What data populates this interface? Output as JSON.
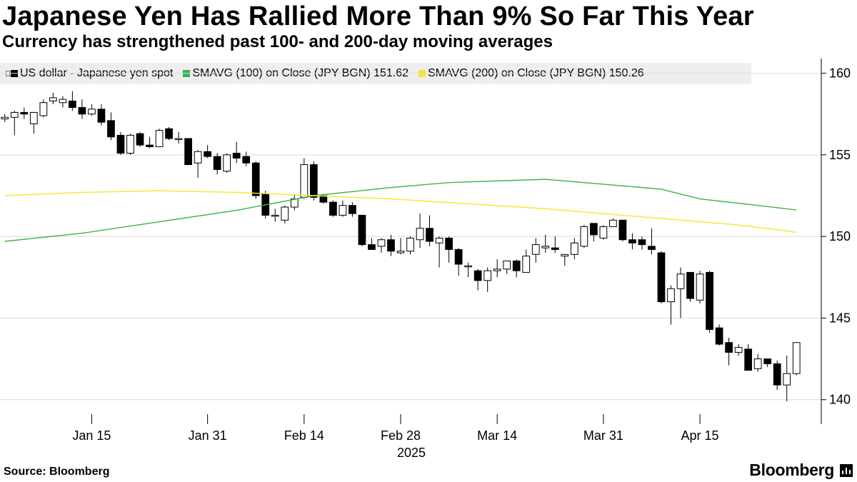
{
  "header": {
    "title": "Japanese Yen Has Rallied More Than 9% So Far This Year",
    "subtitle": "Currency has strengthened past 100- and 200-day moving averages"
  },
  "legend": {
    "spot_label": "US dollar - Japanese yen spot",
    "sma100_label": "SMAVG (100)  on Close (JPY BGN) 151.62",
    "sma200_label": "SMAVG (200)  on Close (JPY BGN) 150.26"
  },
  "footer": {
    "source": "Source: Bloomberg",
    "brand": "Bloomberg"
  },
  "colors": {
    "up_fill": "#ffffff",
    "down_fill": "#000000",
    "sma100": "#3cb44b",
    "sma200": "#f5e62a",
    "axis": "#000000",
    "legend_bg": "#eeeeee"
  },
  "chart_data": {
    "type": "candlestick",
    "title": "Japanese Yen Has Rallied More Than 9% So Far This Year",
    "subtitle": "Currency has strengthened past 100- and 200-day moving averages",
    "year_label": "2025",
    "ylim": [
      138.5,
      160.9
    ],
    "yticks": [
      140,
      145,
      150,
      155,
      160
    ],
    "x_tick_labels": [
      {
        "label": "Jan 15",
        "index": 9
      },
      {
        "label": "Jan 31",
        "index": 21
      },
      {
        "label": "Feb 14",
        "index": 31
      },
      {
        "label": "Feb 28",
        "index": 41
      },
      {
        "label": "Mar 14",
        "index": 51
      },
      {
        "label": "Mar 31",
        "index": 62
      },
      {
        "label": "Apr 15",
        "index": 72
      }
    ],
    "series": [
      {
        "name": "US dollar - Japanese yen spot",
        "ohlc": [
          [
            157.2,
            157.5,
            157.0,
            157.3
          ],
          [
            157.3,
            157.7,
            156.2,
            157.6
          ],
          [
            157.6,
            157.9,
            157.2,
            157.5
          ],
          [
            156.9,
            157.6,
            156.3,
            157.6
          ],
          [
            157.4,
            158.4,
            157.3,
            158.2
          ],
          [
            158.3,
            158.8,
            158.1,
            158.5
          ],
          [
            158.2,
            158.6,
            157.9,
            158.4
          ],
          [
            158.3,
            158.9,
            157.7,
            157.9
          ],
          [
            157.9,
            158.4,
            157.2,
            157.5
          ],
          [
            157.5,
            158.1,
            157.4,
            157.8
          ],
          [
            157.8,
            158.1,
            156.8,
            157.0
          ],
          [
            157.1,
            157.6,
            155.9,
            156.1
          ],
          [
            156.2,
            156.4,
            155.0,
            155.1
          ],
          [
            155.1,
            156.3,
            155.0,
            156.2
          ],
          [
            156.3,
            156.4,
            155.5,
            155.6
          ],
          [
            155.6,
            156.1,
            155.4,
            155.5
          ],
          [
            155.5,
            156.6,
            155.5,
            156.5
          ],
          [
            156.6,
            156.7,
            155.9,
            156.0
          ],
          [
            156.0,
            156.4,
            155.7,
            156.0
          ],
          [
            156.0,
            156.0,
            154.4,
            154.4
          ],
          [
            154.5,
            155.3,
            153.6,
            155.2
          ],
          [
            155.2,
            155.6,
            154.8,
            154.9
          ],
          [
            154.9,
            155.1,
            153.8,
            154.1
          ],
          [
            154.0,
            155.1,
            153.9,
            155.0
          ],
          [
            155.1,
            155.8,
            154.5,
            154.8
          ],
          [
            154.9,
            155.2,
            154.3,
            154.5
          ],
          [
            154.5,
            154.6,
            152.3,
            152.5
          ],
          [
            152.6,
            152.8,
            151.1,
            151.3
          ],
          [
            151.3,
            151.7,
            150.9,
            151.3
          ],
          [
            151.0,
            151.9,
            150.8,
            151.8
          ],
          [
            151.8,
            152.6,
            151.6,
            152.3
          ],
          [
            152.4,
            154.8,
            152.3,
            154.4
          ],
          [
            154.4,
            154.6,
            152.2,
            152.4
          ],
          [
            152.5,
            152.6,
            152.0,
            152.1
          ],
          [
            152.1,
            152.2,
            151.2,
            151.3
          ],
          [
            151.3,
            152.2,
            151.2,
            151.9
          ],
          [
            151.9,
            152.1,
            151.2,
            151.4
          ],
          [
            151.3,
            151.3,
            149.4,
            149.5
          ],
          [
            149.5,
            149.9,
            149.2,
            149.2
          ],
          [
            149.4,
            149.9,
            149.0,
            149.8
          ],
          [
            149.8,
            150.1,
            148.8,
            149.1
          ],
          [
            149.0,
            149.9,
            148.9,
            149.1
          ],
          [
            149.1,
            150.0,
            148.9,
            149.9
          ],
          [
            149.8,
            151.4,
            149.3,
            150.5
          ],
          [
            150.5,
            151.3,
            149.4,
            149.7
          ],
          [
            149.6,
            150.0,
            148.1,
            149.9
          ],
          [
            149.9,
            150.0,
            148.4,
            149.2
          ],
          [
            149.2,
            149.3,
            147.6,
            148.3
          ],
          [
            148.2,
            148.4,
            147.5,
            148.2
          ],
          [
            147.9,
            148.0,
            146.7,
            147.3
          ],
          [
            147.3,
            148.1,
            146.6,
            147.9
          ],
          [
            147.9,
            148.6,
            147.5,
            148.0
          ],
          [
            148.0,
            148.5,
            147.7,
            148.5
          ],
          [
            148.5,
            148.6,
            147.5,
            147.9
          ],
          [
            147.8,
            149.2,
            147.8,
            148.8
          ],
          [
            148.9,
            149.9,
            148.4,
            149.5
          ],
          [
            149.3,
            150.1,
            149.0,
            149.4
          ],
          [
            149.3,
            150.0,
            149.0,
            149.2
          ],
          [
            148.8,
            148.9,
            148.2,
            148.9
          ],
          [
            148.9,
            149.9,
            148.6,
            149.6
          ],
          [
            149.4,
            150.7,
            149.3,
            150.6
          ],
          [
            150.8,
            150.8,
            149.7,
            150.1
          ],
          [
            149.9,
            150.7,
            149.8,
            150.6
          ],
          [
            150.6,
            151.1,
            150.6,
            151.0
          ],
          [
            151.0,
            151.0,
            149.7,
            149.8
          ],
          [
            149.8,
            150.2,
            149.2,
            149.6
          ],
          [
            149.8,
            150.0,
            149.2,
            149.5
          ],
          [
            149.4,
            150.5,
            148.9,
            149.2
          ],
          [
            149.0,
            149.1,
            145.9,
            146.0
          ],
          [
            146.0,
            147.0,
            144.6,
            146.8
          ],
          [
            146.8,
            148.1,
            145.0,
            147.7
          ],
          [
            147.8,
            147.8,
            146.0,
            146.2
          ],
          [
            146.1,
            147.9,
            145.9,
            147.7
          ],
          [
            147.8,
            147.9,
            144.1,
            144.3
          ],
          [
            144.4,
            144.6,
            143.3,
            143.4
          ],
          [
            143.5,
            143.8,
            142.1,
            142.9
          ],
          [
            142.9,
            143.4,
            142.7,
            143.2
          ],
          [
            143.1,
            143.4,
            141.8,
            141.8
          ],
          [
            141.9,
            142.8,
            141.7,
            142.5
          ],
          [
            142.5,
            142.5,
            142.0,
            142.2
          ],
          [
            142.2,
            142.4,
            140.6,
            140.9
          ],
          [
            140.9,
            142.7,
            139.9,
            141.6
          ],
          [
            141.6,
            143.5,
            141.5,
            143.5
          ]
        ]
      },
      {
        "name": "SMAVG (100)  on Close (JPY BGN)",
        "last_value": 151.62,
        "points": [
          [
            0,
            149.7
          ],
          [
            8,
            150.2
          ],
          [
            16,
            150.9
          ],
          [
            24,
            151.6
          ],
          [
            32,
            152.5
          ],
          [
            40,
            153.0
          ],
          [
            46,
            153.3
          ],
          [
            56,
            153.5
          ],
          [
            64,
            153.1
          ],
          [
            68,
            152.9
          ],
          [
            72,
            152.3
          ],
          [
            78,
            151.9
          ],
          [
            82,
            151.62
          ]
        ]
      },
      {
        "name": "SMAVG (200)  on Close (JPY BGN)",
        "last_value": 150.26,
        "points": [
          [
            0,
            152.5
          ],
          [
            8,
            152.7
          ],
          [
            16,
            152.8
          ],
          [
            24,
            152.7
          ],
          [
            32,
            152.5
          ],
          [
            40,
            152.3
          ],
          [
            48,
            152.0
          ],
          [
            56,
            151.7
          ],
          [
            64,
            151.3
          ],
          [
            70,
            151.0
          ],
          [
            76,
            150.7
          ],
          [
            82,
            150.26
          ]
        ]
      }
    ]
  }
}
